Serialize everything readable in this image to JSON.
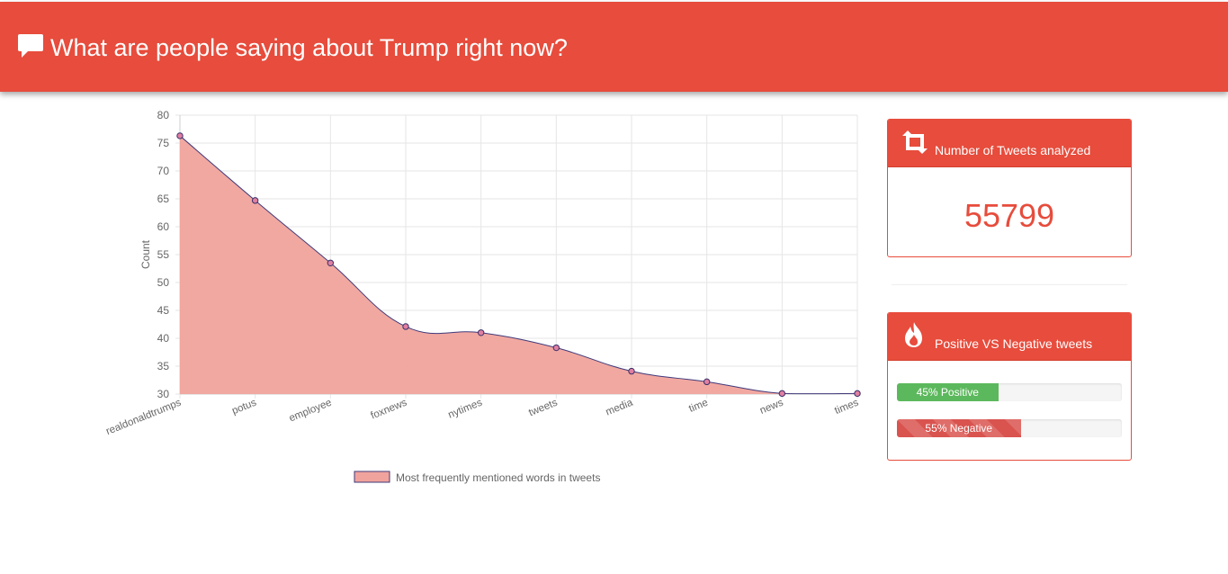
{
  "header": {
    "title": "What are people saying about Trump right now?",
    "icon": "comment-icon",
    "color": "#e74c3c"
  },
  "chart_data": {
    "type": "area",
    "categories": [
      "realdonaldtrumps",
      "potus",
      "employee",
      "foxnews",
      "nytimes",
      "tweets",
      "media",
      "time",
      "news",
      "times"
    ],
    "series": [
      {
        "name": "Most frequently mentioned words in tweets",
        "values": [
          76.3,
          64.7,
          53.5,
          42.1,
          41.0,
          38.3,
          34.1,
          32.2,
          30.1,
          30.1
        ]
      }
    ],
    "xlabel": "",
    "ylabel": "Count",
    "ylim": [
      30,
      80
    ],
    "yticks": [
      30,
      35,
      40,
      45,
      50,
      55,
      60,
      65,
      70,
      75,
      80
    ],
    "grid": true,
    "legend": "bottom",
    "fill_color": "#f0a39c",
    "line_color": "#3f3a7a"
  },
  "stats": {
    "tweets_panel": {
      "label": "Number of Tweets analyzed",
      "icon": "retweet-icon",
      "value": "55799"
    },
    "sentiment_panel": {
      "label": "Positive VS Negative tweets",
      "icon": "fire-icon",
      "positive": {
        "label": "45% Positive",
        "fraction": 0.45,
        "color": "#5cb85c"
      },
      "negative": {
        "label": "55% Negative",
        "fraction": 0.55,
        "color": "#d9534f"
      }
    }
  }
}
